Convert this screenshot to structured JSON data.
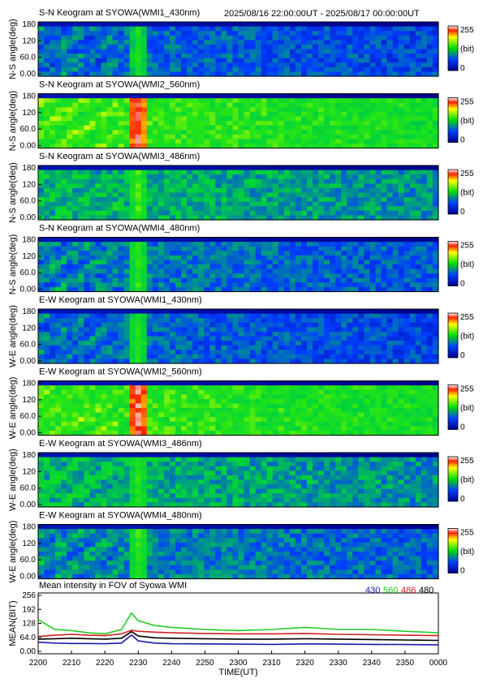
{
  "header": {
    "time_range": "2025/08/16 22:00:00UT - 2025/08/17 00:00:00UT"
  },
  "colorbar": {
    "max_label": "255",
    "unit_label": "(bit)",
    "min_label": "0"
  },
  "keograms": [
    {
      "title": "S-N Keogram at SYOWA(WMI1_430nm)",
      "ylabel": "N-S angle(deg)",
      "yticks": [
        "180",
        "120",
        "60.0",
        "0.00"
      ],
      "level": 0.3,
      "aurora": 0.55
    },
    {
      "title": "S-N Keogram at SYOWA(WMI2_560nm)",
      "ylabel": "N-S angle(deg)",
      "yticks": [
        "180",
        "120",
        "60.0",
        "0.00"
      ],
      "level": 0.6,
      "aurora": 0.95
    },
    {
      "title": "S-N Keogram at SYOWA(WMI3_486nm)",
      "ylabel": "N-S angle(deg)",
      "yticks": [
        "180",
        "120",
        "60.0",
        "0.00"
      ],
      "level": 0.42,
      "aurora": 0.62
    },
    {
      "title": "S-N Keogram at SYOWA(WMI4_480nm)",
      "ylabel": "N-S angle(deg)",
      "yticks": [
        "180",
        "120",
        "60.0",
        "0.00"
      ],
      "level": 0.33,
      "aurora": 0.6
    },
    {
      "title": "E-W Keogram at SYOWA(WMI1_430nm)",
      "ylabel": "W-E angle(deg)",
      "yticks": [
        "180",
        "120",
        "60.0",
        "0.00"
      ],
      "level": 0.3,
      "aurora": 0.58
    },
    {
      "title": "E-W Keogram at SYOWA(WMI2_560nm)",
      "ylabel": "W-E angle(deg)",
      "yticks": [
        "180",
        "120",
        "60.0",
        "0.00"
      ],
      "level": 0.6,
      "aurora": 0.95
    },
    {
      "title": "E-W Keogram at SYOWA(WMI3_486nm)",
      "ylabel": "W-E angle(deg)",
      "yticks": [
        "180",
        "120",
        "60.0",
        "0.00"
      ],
      "level": 0.42,
      "aurora": 0.58
    },
    {
      "title": "E-W Keogram at SYOWA(WMI4_480nm)",
      "ylabel": "W-E angle(deg)",
      "yticks": [
        "180",
        "120",
        "60.0",
        "0.00"
      ],
      "level": 0.35,
      "aurora": 0.6
    }
  ],
  "chart_data": {
    "type": "line",
    "title": "Mean intensity in FOV of Syowa WMI",
    "xlabel": "TIME(UT)",
    "ylabel": "MEAN(BIT)",
    "ylim": [
      0,
      256
    ],
    "yticks": [
      "256",
      "192",
      "128",
      "64.0",
      "0.00"
    ],
    "xticks": [
      "2200",
      "2210",
      "2220",
      "2230",
      "2240",
      "2250",
      "2300",
      "2310",
      "2320",
      "2330",
      "2340",
      "2350",
      "0000"
    ],
    "x": [
      "2200",
      "2205",
      "2210",
      "2215",
      "2220",
      "2225",
      "2228",
      "2230",
      "2235",
      "2240",
      "2250",
      "2300",
      "2310",
      "2320",
      "2330",
      "2340",
      "2350",
      "0000"
    ],
    "series": [
      {
        "name": "430",
        "color": "#1a1aa8",
        "values": [
          42,
          38,
          36,
          36,
          35,
          38,
          75,
          48,
          38,
          35,
          34,
          33,
          32,
          34,
          33,
          32,
          31,
          30
        ]
      },
      {
        "name": "560",
        "color": "#22cc22",
        "values": [
          145,
          100,
          95,
          85,
          80,
          100,
          175,
          140,
          118,
          110,
          100,
          95,
          100,
          110,
          100,
          100,
          92,
          85
        ]
      },
      {
        "name": "486",
        "color": "#d42020",
        "values": [
          68,
          74,
          78,
          74,
          72,
          80,
          96,
          92,
          88,
          85,
          82,
          80,
          80,
          82,
          78,
          76,
          74,
          72
        ]
      },
      {
        "name": "480",
        "color": "#000000",
        "values": [
          56,
          58,
          60,
          58,
          56,
          60,
          90,
          70,
          62,
          60,
          58,
          56,
          56,
          58,
          56,
          54,
          52,
          50
        ]
      }
    ]
  }
}
